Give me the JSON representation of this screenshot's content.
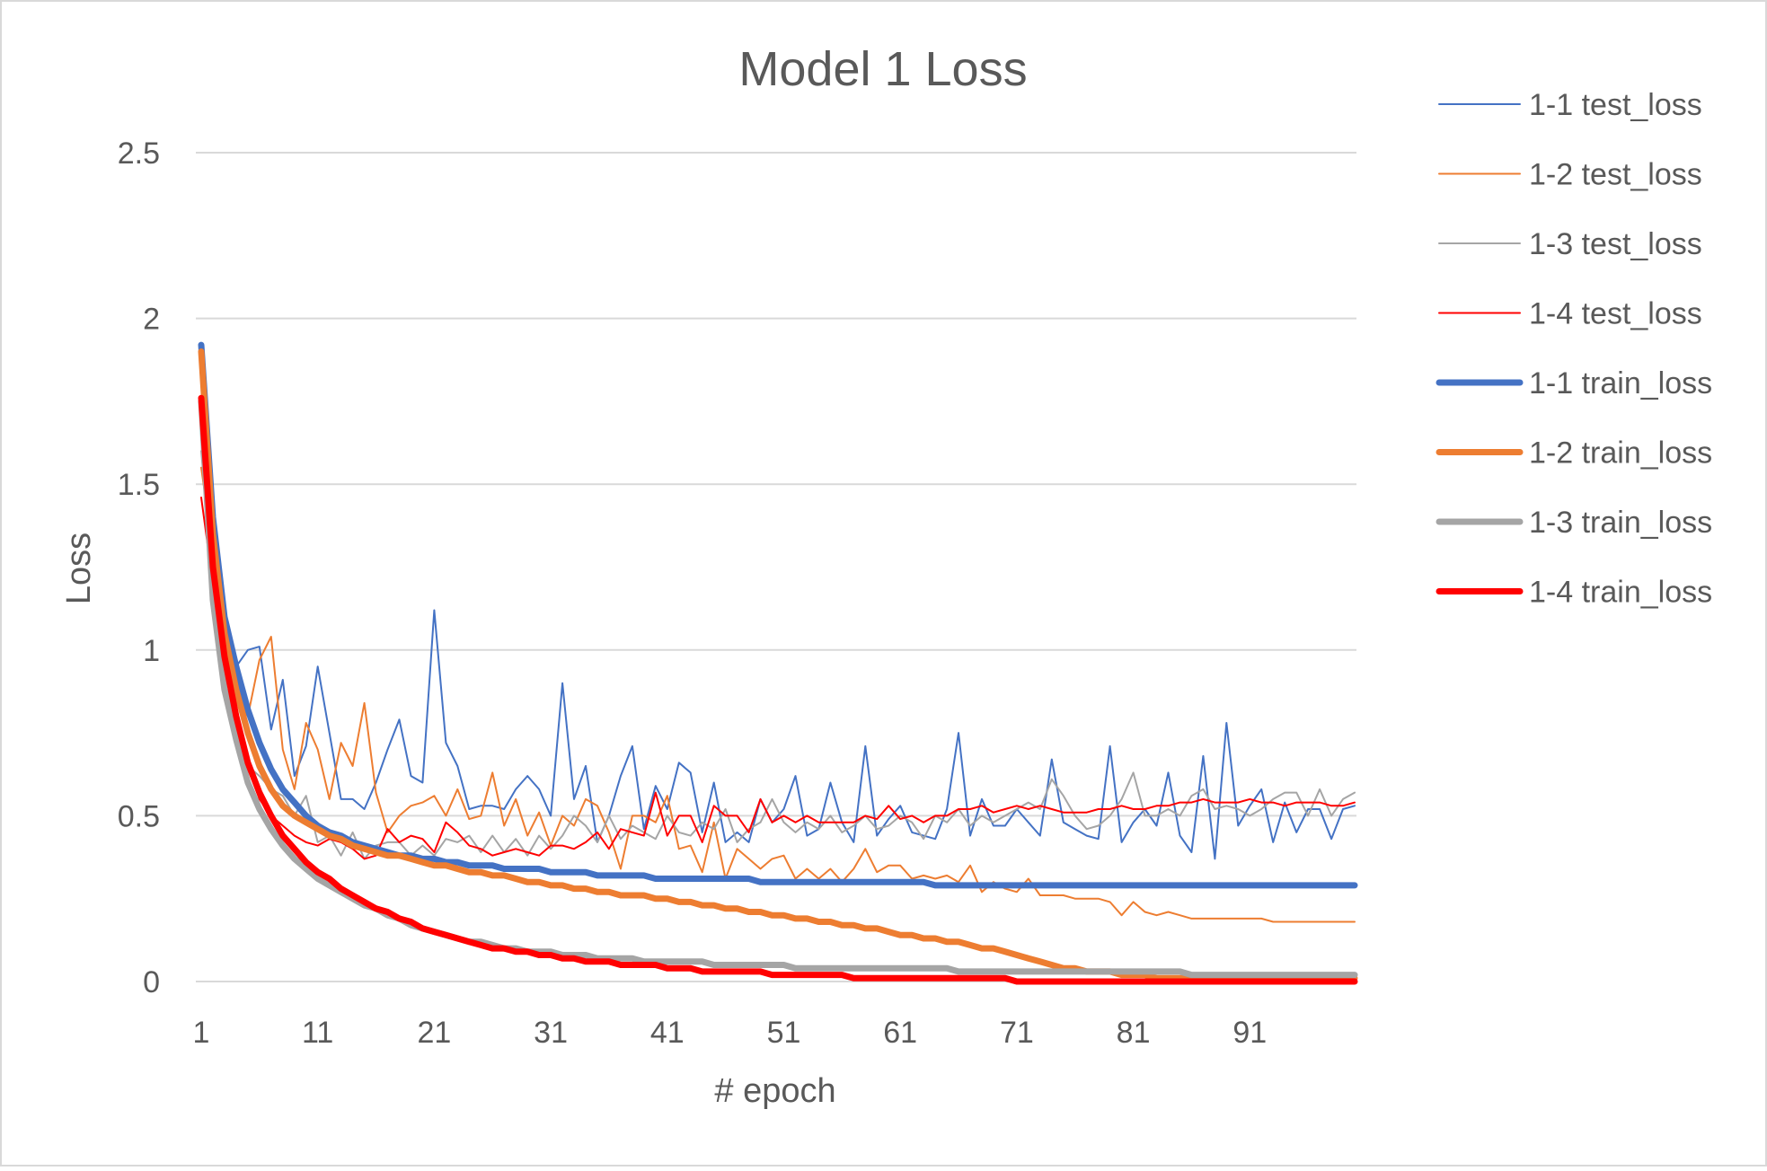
{
  "chart_data": {
    "type": "line",
    "title": "Model 1 Loss",
    "xlabel": "# epoch",
    "ylabel": "Loss",
    "xlim": [
      1,
      100
    ],
    "ylim": [
      0,
      2.5
    ],
    "yticks": [
      "0",
      "0.5",
      "1",
      "1.5",
      "2",
      "2.5"
    ],
    "yticks_values": [
      0,
      0.5,
      1,
      1.5,
      2,
      2.5
    ],
    "xticks": [
      "1",
      "11",
      "21",
      "31",
      "41",
      "51",
      "61",
      "71",
      "81",
      "91"
    ],
    "xticks_values": [
      1,
      11,
      21,
      31,
      41,
      51,
      61,
      71,
      81,
      91
    ],
    "grid": true,
    "legend_position": "right",
    "series": [
      {
        "name": "1-1 test_loss",
        "color": "#4472C4",
        "style": "thin",
        "values": [
          1.85,
          1.35,
          1.1,
          0.95,
          1.0,
          1.01,
          0.76,
          0.91,
          0.62,
          0.71,
          0.95,
          0.75,
          0.55,
          0.55,
          0.52,
          0.6,
          0.7,
          0.79,
          0.62,
          0.6,
          1.12,
          0.72,
          0.65,
          0.52,
          0.53,
          0.53,
          0.52,
          0.58,
          0.62,
          0.58,
          0.5,
          0.9,
          0.55,
          0.65,
          0.42,
          0.5,
          0.62,
          0.71,
          0.46,
          0.59,
          0.52,
          0.66,
          0.63,
          0.45,
          0.6,
          0.42,
          0.45,
          0.42,
          0.55,
          0.48,
          0.52,
          0.62,
          0.44,
          0.46,
          0.6,
          0.48,
          0.42,
          0.71,
          0.44,
          0.49,
          0.53,
          0.45,
          0.44,
          0.43,
          0.52,
          0.75,
          0.44,
          0.55,
          0.47,
          0.47,
          0.52,
          0.48,
          0.44,
          0.67,
          0.48,
          0.46,
          0.44,
          0.43,
          0.71,
          0.42,
          0.48,
          0.52,
          0.47,
          0.63,
          0.44,
          0.39,
          0.68,
          0.37,
          0.78,
          0.47,
          0.53,
          0.58,
          0.42,
          0.54,
          0.45,
          0.52,
          0.52,
          0.43,
          0.52,
          0.53
        ]
      },
      {
        "name": "1-2 test_loss",
        "color": "#ED7D31",
        "style": "thin",
        "values": [
          1.55,
          1.3,
          1.0,
          0.85,
          0.8,
          0.97,
          1.04,
          0.7,
          0.58,
          0.78,
          0.7,
          0.55,
          0.72,
          0.65,
          0.84,
          0.57,
          0.45,
          0.5,
          0.53,
          0.54,
          0.56,
          0.5,
          0.58,
          0.49,
          0.5,
          0.63,
          0.47,
          0.55,
          0.44,
          0.51,
          0.41,
          0.5,
          0.47,
          0.55,
          0.53,
          0.45,
          0.34,
          0.5,
          0.5,
          0.48,
          0.56,
          0.4,
          0.41,
          0.33,
          0.48,
          0.31,
          0.4,
          0.37,
          0.34,
          0.37,
          0.38,
          0.31,
          0.34,
          0.31,
          0.34,
          0.3,
          0.34,
          0.4,
          0.33,
          0.35,
          0.35,
          0.31,
          0.32,
          0.31,
          0.32,
          0.3,
          0.35,
          0.27,
          0.3,
          0.28,
          0.27,
          0.31,
          0.26,
          0.26,
          0.26,
          0.25,
          0.25,
          0.25,
          0.24,
          0.2,
          0.24,
          0.21,
          0.2,
          0.21,
          0.2,
          0.19,
          0.19,
          0.19,
          0.19,
          0.19,
          0.19,
          0.19,
          0.18,
          0.18,
          0.18,
          0.18,
          0.18,
          0.18,
          0.18,
          0.18
        ]
      },
      {
        "name": "1-3 test_loss",
        "color": "#A5A5A5",
        "style": "thin",
        "values": [
          1.6,
          1.2,
          0.9,
          0.8,
          0.65,
          0.62,
          0.58,
          0.56,
          0.5,
          0.56,
          0.42,
          0.44,
          0.38,
          0.45,
          0.37,
          0.41,
          0.42,
          0.42,
          0.38,
          0.41,
          0.38,
          0.43,
          0.42,
          0.44,
          0.39,
          0.44,
          0.39,
          0.43,
          0.38,
          0.44,
          0.4,
          0.44,
          0.5,
          0.47,
          0.42,
          0.5,
          0.43,
          0.47,
          0.45,
          0.43,
          0.5,
          0.45,
          0.44,
          0.48,
          0.46,
          0.52,
          0.42,
          0.46,
          0.48,
          0.55,
          0.48,
          0.45,
          0.48,
          0.46,
          0.5,
          0.45,
          0.47,
          0.5,
          0.46,
          0.47,
          0.5,
          0.48,
          0.43,
          0.5,
          0.48,
          0.52,
          0.47,
          0.5,
          0.48,
          0.5,
          0.52,
          0.54,
          0.52,
          0.61,
          0.56,
          0.5,
          0.46,
          0.47,
          0.5,
          0.55,
          0.63,
          0.5,
          0.5,
          0.52,
          0.5,
          0.56,
          0.58,
          0.52,
          0.53,
          0.52,
          0.5,
          0.52,
          0.55,
          0.57,
          0.57,
          0.5,
          0.58,
          0.5,
          0.55,
          0.57
        ]
      },
      {
        "name": "1-4 test_loss",
        "color": "#FF0000",
        "style": "thin",
        "values": [
          1.46,
          1.2,
          0.95,
          0.78,
          0.65,
          0.55,
          0.5,
          0.47,
          0.44,
          0.42,
          0.41,
          0.43,
          0.42,
          0.4,
          0.37,
          0.38,
          0.46,
          0.42,
          0.44,
          0.43,
          0.39,
          0.48,
          0.45,
          0.41,
          0.4,
          0.38,
          0.39,
          0.4,
          0.39,
          0.38,
          0.41,
          0.41,
          0.4,
          0.42,
          0.45,
          0.4,
          0.46,
          0.45,
          0.44,
          0.57,
          0.44,
          0.5,
          0.5,
          0.42,
          0.53,
          0.5,
          0.5,
          0.45,
          0.55,
          0.48,
          0.5,
          0.48,
          0.5,
          0.48,
          0.48,
          0.48,
          0.48,
          0.5,
          0.49,
          0.53,
          0.49,
          0.5,
          0.48,
          0.5,
          0.5,
          0.52,
          0.52,
          0.53,
          0.51,
          0.52,
          0.53,
          0.52,
          0.53,
          0.52,
          0.51,
          0.51,
          0.51,
          0.52,
          0.52,
          0.53,
          0.52,
          0.52,
          0.53,
          0.53,
          0.54,
          0.54,
          0.55,
          0.54,
          0.54,
          0.54,
          0.55,
          0.54,
          0.54,
          0.53,
          0.54,
          0.54,
          0.54,
          0.53,
          0.53,
          0.54
        ]
      },
      {
        "name": "1-1 train_loss",
        "color": "#4472C4",
        "style": "thick",
        "values": [
          1.92,
          1.4,
          1.1,
          0.95,
          0.82,
          0.72,
          0.64,
          0.58,
          0.54,
          0.5,
          0.47,
          0.45,
          0.44,
          0.42,
          0.41,
          0.4,
          0.39,
          0.38,
          0.38,
          0.37,
          0.37,
          0.36,
          0.36,
          0.35,
          0.35,
          0.35,
          0.34,
          0.34,
          0.34,
          0.34,
          0.33,
          0.33,
          0.33,
          0.33,
          0.32,
          0.32,
          0.32,
          0.32,
          0.32,
          0.31,
          0.31,
          0.31,
          0.31,
          0.31,
          0.31,
          0.31,
          0.31,
          0.31,
          0.3,
          0.3,
          0.3,
          0.3,
          0.3,
          0.3,
          0.3,
          0.3,
          0.3,
          0.3,
          0.3,
          0.3,
          0.3,
          0.3,
          0.3,
          0.29,
          0.29,
          0.29,
          0.29,
          0.29,
          0.29,
          0.29,
          0.29,
          0.29,
          0.29,
          0.29,
          0.29,
          0.29,
          0.29,
          0.29,
          0.29,
          0.29,
          0.29,
          0.29,
          0.29,
          0.29,
          0.29,
          0.29,
          0.29,
          0.29,
          0.29,
          0.29,
          0.29,
          0.29,
          0.29,
          0.29,
          0.29,
          0.29,
          0.29,
          0.29,
          0.29,
          0.29
        ]
      },
      {
        "name": "1-2 train_loss",
        "color": "#ED7D31",
        "style": "thick",
        "values": [
          1.9,
          1.35,
          1.05,
          0.88,
          0.75,
          0.65,
          0.58,
          0.53,
          0.5,
          0.48,
          0.46,
          0.44,
          0.43,
          0.41,
          0.4,
          0.39,
          0.38,
          0.38,
          0.37,
          0.36,
          0.35,
          0.35,
          0.34,
          0.33,
          0.33,
          0.32,
          0.32,
          0.31,
          0.3,
          0.3,
          0.29,
          0.29,
          0.28,
          0.28,
          0.27,
          0.27,
          0.26,
          0.26,
          0.26,
          0.25,
          0.25,
          0.24,
          0.24,
          0.23,
          0.23,
          0.22,
          0.22,
          0.21,
          0.21,
          0.2,
          0.2,
          0.19,
          0.19,
          0.18,
          0.18,
          0.17,
          0.17,
          0.16,
          0.16,
          0.15,
          0.14,
          0.14,
          0.13,
          0.13,
          0.12,
          0.12,
          0.11,
          0.1,
          0.1,
          0.09,
          0.08,
          0.07,
          0.06,
          0.05,
          0.04,
          0.04,
          0.03,
          0.03,
          0.03,
          0.02,
          0.02,
          0.02,
          0.01,
          0.01,
          0.01,
          0.01,
          0.01,
          0.01,
          0.01,
          0.01,
          0.01,
          0.01,
          0.01,
          0.01,
          0.01,
          0.01,
          0.01,
          0.01,
          0.01,
          0.01
        ]
      },
      {
        "name": "1-3 train_loss",
        "color": "#A5A5A5",
        "style": "thick",
        "values": [
          1.75,
          1.15,
          0.88,
          0.73,
          0.6,
          0.52,
          0.46,
          0.41,
          0.37,
          0.34,
          0.31,
          0.29,
          0.27,
          0.25,
          0.23,
          0.22,
          0.2,
          0.19,
          0.17,
          0.16,
          0.15,
          0.14,
          0.13,
          0.12,
          0.12,
          0.11,
          0.1,
          0.1,
          0.09,
          0.09,
          0.09,
          0.08,
          0.08,
          0.08,
          0.07,
          0.07,
          0.07,
          0.07,
          0.06,
          0.06,
          0.06,
          0.06,
          0.06,
          0.06,
          0.05,
          0.05,
          0.05,
          0.05,
          0.05,
          0.05,
          0.05,
          0.04,
          0.04,
          0.04,
          0.04,
          0.04,
          0.04,
          0.04,
          0.04,
          0.04,
          0.04,
          0.04,
          0.04,
          0.04,
          0.04,
          0.03,
          0.03,
          0.03,
          0.03,
          0.03,
          0.03,
          0.03,
          0.03,
          0.03,
          0.03,
          0.03,
          0.03,
          0.03,
          0.03,
          0.03,
          0.03,
          0.03,
          0.03,
          0.03,
          0.03,
          0.02,
          0.02,
          0.02,
          0.02,
          0.02,
          0.02,
          0.02,
          0.02,
          0.02,
          0.02,
          0.02,
          0.02,
          0.02,
          0.02,
          0.02
        ]
      },
      {
        "name": "1-4 train_loss",
        "color": "#FF0000",
        "style": "thick",
        "values": [
          1.76,
          1.25,
          0.98,
          0.8,
          0.66,
          0.57,
          0.5,
          0.44,
          0.4,
          0.36,
          0.33,
          0.31,
          0.28,
          0.26,
          0.24,
          0.22,
          0.21,
          0.19,
          0.18,
          0.16,
          0.15,
          0.14,
          0.13,
          0.12,
          0.11,
          0.1,
          0.1,
          0.09,
          0.09,
          0.08,
          0.08,
          0.07,
          0.07,
          0.06,
          0.06,
          0.06,
          0.05,
          0.05,
          0.05,
          0.05,
          0.04,
          0.04,
          0.04,
          0.03,
          0.03,
          0.03,
          0.03,
          0.03,
          0.03,
          0.02,
          0.02,
          0.02,
          0.02,
          0.02,
          0.02,
          0.02,
          0.01,
          0.01,
          0.01,
          0.01,
          0.01,
          0.01,
          0.01,
          0.01,
          0.01,
          0.01,
          0.01,
          0.01,
          0.01,
          0.01,
          0.0,
          0.0,
          0.0,
          0.0,
          0.0,
          0.0,
          0.0,
          0.0,
          0.0,
          0.0,
          0.0,
          0.0,
          0.0,
          0.0,
          0.0,
          0.0,
          0.0,
          0.0,
          0.0,
          0.0,
          0.0,
          0.0,
          0.0,
          0.0,
          0.0,
          0.0,
          0.0,
          0.0,
          0.0,
          0.0
        ]
      }
    ]
  }
}
